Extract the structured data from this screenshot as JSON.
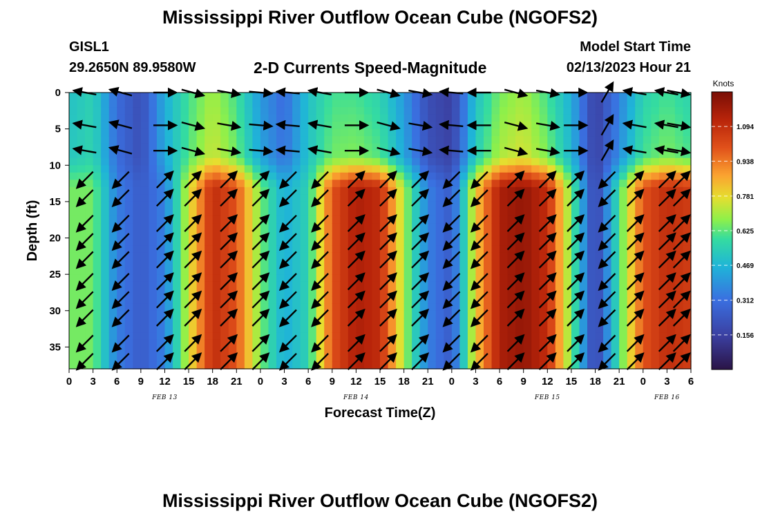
{
  "page": {
    "title": "Mississippi River Outflow Ocean Cube (NGOFS2)",
    "title_repeat": "Mississippi River Outflow Ocean Cube (NGOFS2)"
  },
  "station": {
    "name": "GISL1",
    "coords": "29.2650N  89.9580W"
  },
  "plot_title": "2-D Currents Speed-Magnitude",
  "model_start": {
    "label": "Model Start Time",
    "value": "02/13/2023 Hour 21"
  },
  "chart_data": {
    "type": "heatmap",
    "xlabel": "Forecast Time(Z)",
    "ylabel": "Depth (ft)",
    "x_range_hours": [
      0,
      78
    ],
    "ylim": [
      0,
      38
    ],
    "x_ticks": [
      "0",
      "3",
      "6",
      "9",
      "12",
      "15",
      "18",
      "21",
      "0",
      "3",
      "6",
      "9",
      "12",
      "15",
      "18",
      "21",
      "0",
      "3",
      "6",
      "9",
      "12",
      "15",
      "18",
      "21",
      "0",
      "3",
      "6"
    ],
    "day_labels": [
      {
        "label": "FEB 13",
        "hour": 12
      },
      {
        "label": "FEB 14",
        "hour": 36
      },
      {
        "label": "FEB 15",
        "hour": 60
      },
      {
        "label": "FEB 16",
        "hour": 75
      }
    ],
    "y_ticks": [
      0,
      5,
      10,
      15,
      20,
      25,
      30,
      35
    ],
    "colorbar": {
      "label": "Knots",
      "min": 0,
      "max": 1.25,
      "ticks": [
        0.156,
        0.312,
        0.469,
        0.625,
        0.781,
        0.938,
        1.094
      ],
      "tick_labels": [
        "0.156",
        "0.312",
        "0.469",
        "0.625",
        "0.781",
        "0.938",
        "1.094"
      ]
    },
    "surface_speed_knots": [
      {
        "hour": 0,
        "value": 0.5
      },
      {
        "hour": 3,
        "value": 0.55
      },
      {
        "hour": 6,
        "value": 0.3
      },
      {
        "hour": 9,
        "value": 0.2
      },
      {
        "hour": 12,
        "value": 0.45
      },
      {
        "hour": 15,
        "value": 0.6
      },
      {
        "hour": 18,
        "value": 0.7
      },
      {
        "hour": 21,
        "value": 0.6
      },
      {
        "hour": 24,
        "value": 0.4
      },
      {
        "hour": 27,
        "value": 0.3
      },
      {
        "hour": 30,
        "value": 0.5
      },
      {
        "hour": 33,
        "value": 0.6
      },
      {
        "hour": 36,
        "value": 0.6
      },
      {
        "hour": 39,
        "value": 0.55
      },
      {
        "hour": 42,
        "value": 0.4
      },
      {
        "hour": 45,
        "value": 0.2
      },
      {
        "hour": 48,
        "value": 0.15
      },
      {
        "hour": 51,
        "value": 0.5
      },
      {
        "hour": 54,
        "value": 0.65
      },
      {
        "hour": 57,
        "value": 0.7
      },
      {
        "hour": 60,
        "value": 0.6
      },
      {
        "hour": 63,
        "value": 0.45
      },
      {
        "hour": 66,
        "value": 0.15
      },
      {
        "hour": 69,
        "value": 0.35
      },
      {
        "hour": 72,
        "value": 0.55
      },
      {
        "hour": 75,
        "value": 0.6
      },
      {
        "hour": 78,
        "value": 0.55
      }
    ],
    "deep_speed_knots": [
      {
        "hour": 0,
        "value": 0.65
      },
      {
        "hour": 3,
        "value": 0.65
      },
      {
        "hour": 6,
        "value": 0.35
      },
      {
        "hour": 9,
        "value": 0.25
      },
      {
        "hour": 12,
        "value": 0.35
      },
      {
        "hour": 15,
        "value": 0.75
      },
      {
        "hour": 18,
        "value": 1.1
      },
      {
        "hour": 21,
        "value": 1.0
      },
      {
        "hour": 24,
        "value": 0.65
      },
      {
        "hour": 27,
        "value": 0.45
      },
      {
        "hour": 30,
        "value": 0.55
      },
      {
        "hour": 33,
        "value": 1.0
      },
      {
        "hour": 36,
        "value": 1.15
      },
      {
        "hour": 39,
        "value": 1.1
      },
      {
        "hour": 42,
        "value": 0.7
      },
      {
        "hour": 45,
        "value": 0.35
      },
      {
        "hour": 48,
        "value": 0.25
      },
      {
        "hour": 51,
        "value": 0.8
      },
      {
        "hour": 54,
        "value": 1.15
      },
      {
        "hour": 57,
        "value": 1.2
      },
      {
        "hour": 60,
        "value": 1.1
      },
      {
        "hour": 63,
        "value": 0.65
      },
      {
        "hour": 66,
        "value": 0.15
      },
      {
        "hour": 69,
        "value": 0.6
      },
      {
        "hour": 72,
        "value": 1.0
      },
      {
        "hour": 75,
        "value": 1.1
      },
      {
        "hour": 78,
        "value": 1.05
      }
    ],
    "vector_columns_hours": [
      2,
      6.5,
      12,
      15.5,
      20,
      24,
      27.5,
      31.5,
      36,
      40,
      44,
      48,
      51.5,
      56,
      60,
      63.5,
      67.5,
      71,
      75,
      78
    ],
    "vector_depths_ft": [
      0,
      4.5,
      8,
      12,
      14.5,
      18,
      20.5,
      23,
      26,
      28.5,
      31,
      34.5,
      37
    ],
    "vector_direction_by_column_deg": [
      135,
      135,
      315,
      315,
      315,
      315,
      135,
      135,
      315,
      315,
      315,
      135,
      135,
      315,
      315,
      315,
      135,
      315,
      315,
      315
    ],
    "vector_direction_upper_layer_deg": [
      190,
      195,
      0,
      15,
      10,
      5,
      185,
      190,
      0,
      15,
      10,
      185,
      180,
      15,
      10,
      0,
      300,
      190,
      190,
      10
    ]
  }
}
